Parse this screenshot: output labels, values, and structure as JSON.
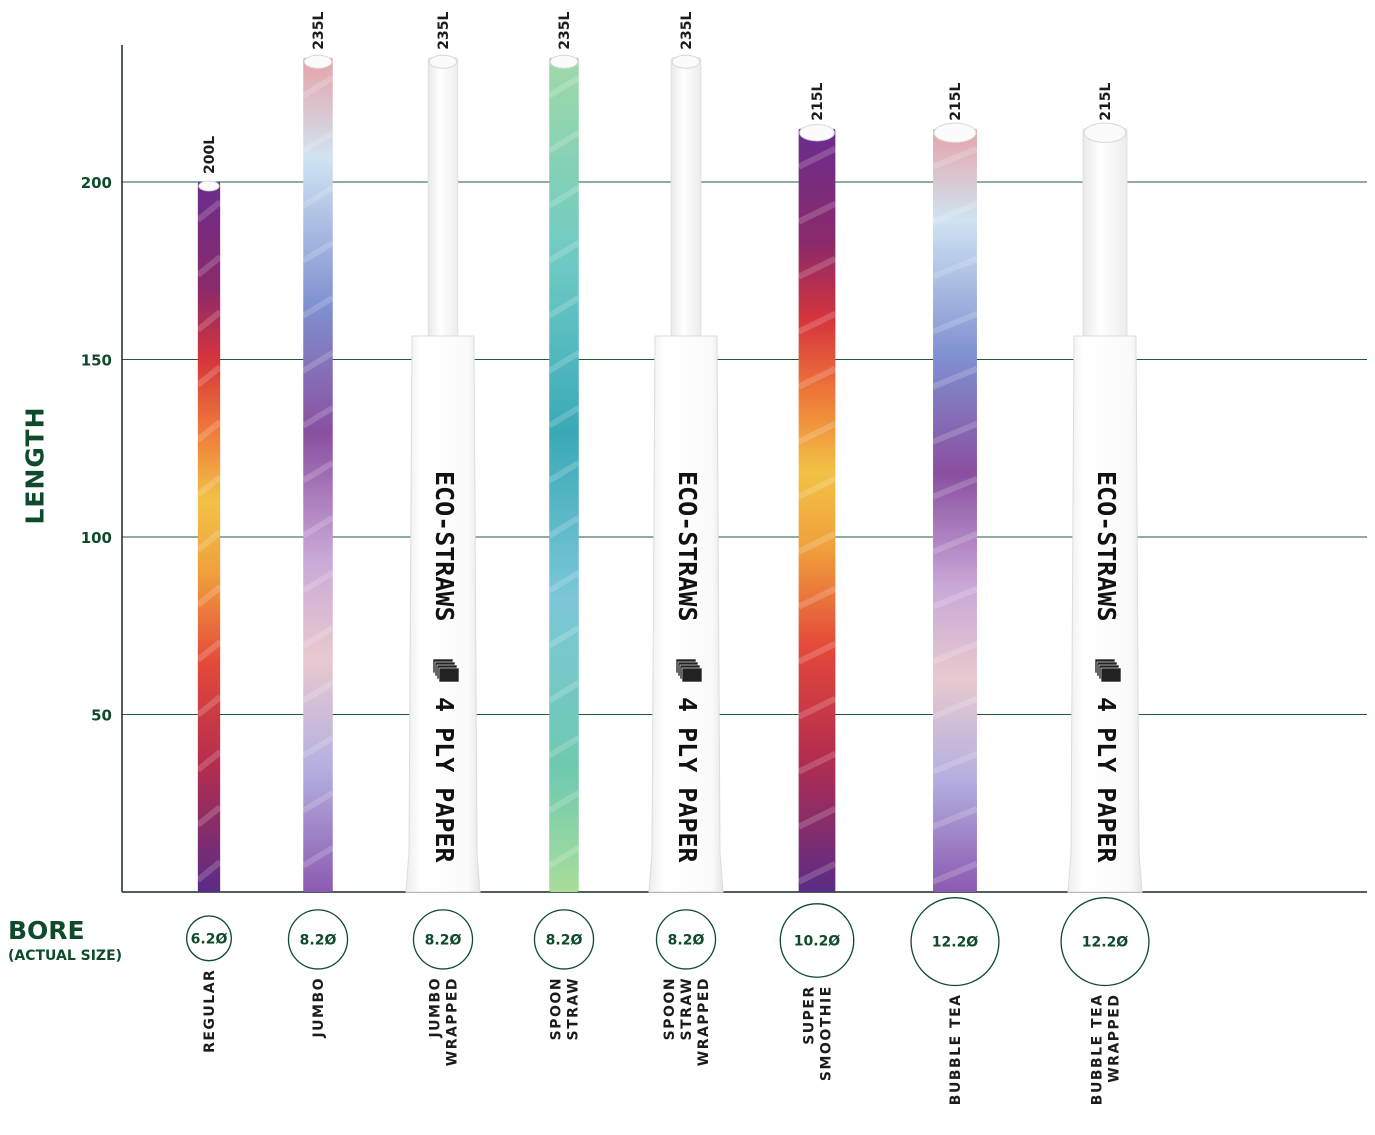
{
  "chart_data": {
    "type": "bar",
    "ylabel": "LENGTH",
    "yticks": [
      200,
      150,
      100,
      50
    ],
    "ylim": [
      0,
      235
    ],
    "grid": true,
    "bore_title": "BORE",
    "bore_subtitle": "(ACTUAL SIZE)",
    "categories": [
      {
        "name": [
          "REGULAR"
        ],
        "length": 200,
        "length_label": "200L",
        "bore": 6.2,
        "bore_label": "6.2Ø",
        "wrapped": false,
        "style": "rainbow-purple"
      },
      {
        "name": [
          "JUMBO"
        ],
        "length": 235,
        "length_label": "235L",
        "bore": 8.2,
        "bore_label": "8.2Ø",
        "wrapped": false,
        "style": "pastel-diagonal"
      },
      {
        "name": [
          "JUMBO",
          "WRAPPED"
        ],
        "length": 235,
        "length_label": "235L",
        "bore": 8.2,
        "bore_label": "8.2Ø",
        "wrapped": true,
        "style": "white"
      },
      {
        "name": [
          "SPOON",
          "STRAW"
        ],
        "length": 235,
        "length_label": "235L",
        "bore": 8.2,
        "bore_label": "8.2Ø",
        "wrapped": false,
        "style": "green-teal"
      },
      {
        "name": [
          "SPOON",
          "STRAW",
          "WRAPPED"
        ],
        "length": 235,
        "length_label": "235L",
        "bore": 8.2,
        "bore_label": "8.2Ø",
        "wrapped": true,
        "style": "white"
      },
      {
        "name": [
          "SUPER",
          "SMOOTHIE"
        ],
        "length": 215,
        "length_label": "215L",
        "bore": 10.2,
        "bore_label": "10.2Ø",
        "wrapped": false,
        "style": "rainbow-purple"
      },
      {
        "name": [
          "BUBBLE TEA"
        ],
        "length": 215,
        "length_label": "215L",
        "bore": 12.2,
        "bore_label": "12.2Ø",
        "wrapped": false,
        "style": "pastel-diagonal"
      },
      {
        "name": [
          "BUBBLE TEA",
          "WRAPPED"
        ],
        "length": 215,
        "length_label": "215L",
        "bore": 12.2,
        "bore_label": "12.2Ø",
        "wrapped": true,
        "style": "white"
      }
    ],
    "wrapper_text": [
      "ECO-STRAWS",
      "4 PLY PAPER"
    ]
  },
  "colors": {
    "accent": "#0f4a2b",
    "grid": "#1f5a3a",
    "wrapper": "#ffffff"
  }
}
